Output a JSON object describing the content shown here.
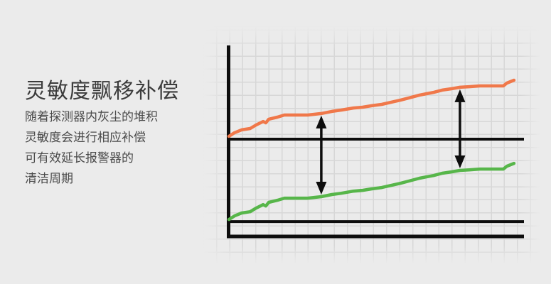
{
  "panel": {
    "title": "灵敏度飘移补偿",
    "lines": [
      "随着探测器内灰尘的堆积",
      "灵敏度会进行相应补偿",
      "可有效延长报警器的",
      "清洁周期"
    ]
  },
  "colors": {
    "background": "#ebebeb",
    "grid_line": "#d7d7d7",
    "axis_black": "#0d0d0d",
    "title_text": "#3c3c3c",
    "body_text": "#4a4a4a",
    "series_orange": "#F0784A",
    "series_green": "#57B64A"
  },
  "chart_data": {
    "type": "line",
    "title": "",
    "xlabel": "",
    "ylabel": "",
    "xlim": [
      0,
      100
    ],
    "ylim": [
      0,
      100
    ],
    "grid": true,
    "legend": false,
    "x": [
      0,
      1.9,
      4.3,
      7.2,
      9.2,
      11.6,
      12.5,
      13.5,
      16.4,
      18.8,
      22.4,
      26.7,
      31.3,
      34.9,
      38.1,
      42.2,
      45.3,
      48.4,
      51.8,
      54.9,
      58.1,
      61.0,
      64.6,
      67.0,
      69.4,
      72.3,
      75.4,
      78.3,
      81.4,
      85.1,
      88.7,
      91.8,
      93.0,
      94.2,
      96.6
    ],
    "series": [
      {
        "name": "orange-compensated-sensitivity",
        "color": "#F0784A",
        "values": [
          52.6,
          54.5,
          56.0,
          56.7,
          58.6,
          60.4,
          59.7,
          61.6,
          62.7,
          63.8,
          63.8,
          63.8,
          64.6,
          65.7,
          66.4,
          67.5,
          67.9,
          68.7,
          69.4,
          70.5,
          71.6,
          72.8,
          74.3,
          75.0,
          75.7,
          76.9,
          77.6,
          78.4,
          78.7,
          79.1,
          79.1,
          79.1,
          79.1,
          80.6,
          82.1
        ]
      },
      {
        "name": "green-drifting-baseline",
        "color": "#57B64A",
        "values": [
          8.9,
          10.8,
          12.3,
          13.0,
          14.9,
          16.7,
          16.0,
          17.9,
          19.0,
          20.1,
          20.1,
          20.1,
          20.9,
          22.0,
          22.7,
          23.8,
          24.2,
          25.0,
          25.7,
          26.8,
          27.9,
          29.1,
          30.6,
          31.3,
          32.0,
          33.2,
          33.9,
          34.7,
          35.0,
          35.4,
          35.4,
          35.4,
          35.4,
          36.9,
          38.4
        ]
      }
    ],
    "reference_lines": [
      {
        "name": "upper-threshold",
        "y": 51.1,
        "color": "#0d0d0d"
      },
      {
        "name": "lower-threshold",
        "y": 7.8,
        "color": "#0d0d0d"
      }
    ],
    "arrows": [
      {
        "x": 31.3,
        "y_from": 20.9,
        "y_to": 64.6
      },
      {
        "x": 78.3,
        "y_from": 34.7,
        "y_to": 78.4
      }
    ]
  }
}
